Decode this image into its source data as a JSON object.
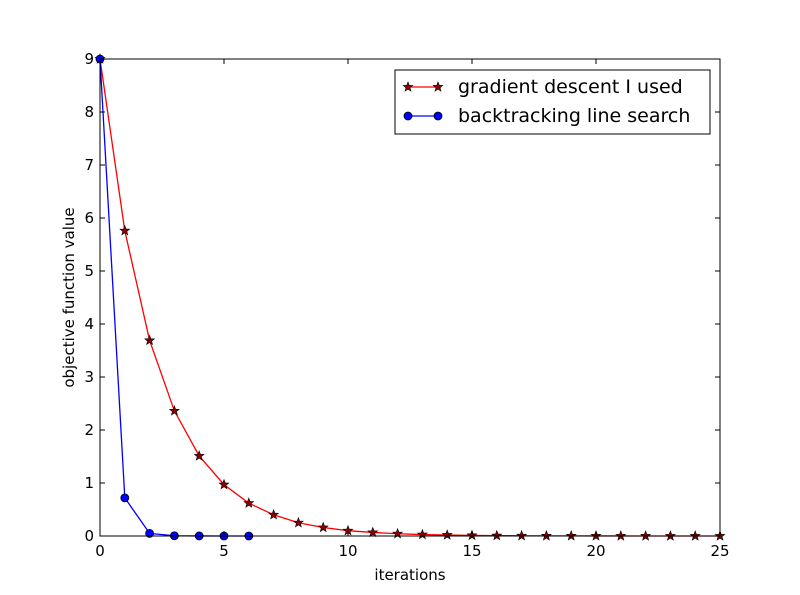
{
  "chart_data": {
    "type": "line",
    "title": "",
    "xlabel": "iterations",
    "ylabel": "objective function value",
    "xlim": [
      0,
      25
    ],
    "ylim": [
      0,
      9
    ],
    "xticks": [
      0,
      5,
      10,
      15,
      20,
      25
    ],
    "yticks": [
      0,
      1,
      2,
      3,
      4,
      5,
      6,
      7,
      8,
      9
    ],
    "grid": false,
    "legend_position": "top-right",
    "series": [
      {
        "name": "gradient descent I used",
        "color": "#ff0000",
        "marker": "star",
        "marker_fill": "#8b0000",
        "x": [
          0,
          1,
          2,
          3,
          4,
          5,
          6,
          7,
          8,
          9,
          10,
          11,
          12,
          13,
          14,
          15,
          16,
          17,
          18,
          19,
          20,
          21,
          22,
          23,
          24,
          25
        ],
        "y": [
          9.0,
          5.76,
          3.69,
          2.36,
          1.51,
          0.97,
          0.62,
          0.4,
          0.25,
          0.16,
          0.1,
          0.067,
          0.043,
          0.027,
          0.018,
          0.011,
          0.007,
          0.0046,
          0.003,
          0.0019,
          0.0012,
          0.0008,
          0.0005,
          0.0003,
          0.0002,
          0.0001
        ]
      },
      {
        "name": "backtracking line search",
        "color": "#0000ff",
        "marker": "circle",
        "marker_fill": "#0000ff",
        "x": [
          0,
          1,
          2,
          3,
          4,
          5,
          6
        ],
        "y": [
          9.0,
          0.72,
          0.05,
          0.005,
          0.001,
          0.0005,
          0.0001
        ]
      }
    ]
  }
}
